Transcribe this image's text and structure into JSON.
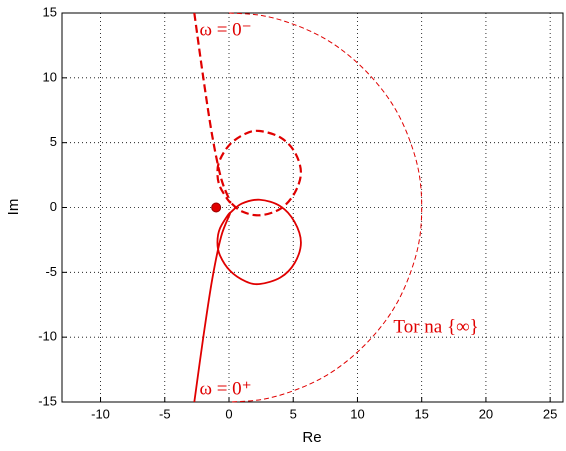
{
  "chart_data": {
    "type": "line",
    "xlabel": "Re",
    "ylabel": "Im",
    "xlim": [
      -13,
      26
    ],
    "ylim": [
      -15,
      15
    ],
    "xticks": [
      -10,
      -5,
      0,
      5,
      10,
      15,
      20,
      25
    ],
    "yticks": [
      -15,
      -10,
      -5,
      0,
      5,
      10,
      15
    ],
    "grid": true,
    "series": [
      {
        "color": "#e00000",
        "style": "solid",
        "x": [
          -2.7,
          -2.0,
          -1.3,
          -0.6,
          0.1,
          -0.7,
          -0.9,
          -0.7,
          0.1,
          1.3,
          2.4,
          4.0,
          5.1,
          5.6,
          5.1,
          4.0,
          2.4,
          1.0,
          0.1
        ],
        "values": [
          -15,
          -10,
          -5.5,
          -2.2,
          -0.4,
          -1.6,
          -2.7,
          -3.7,
          -4.9,
          -5.7,
          -5.9,
          -5.4,
          -4.3,
          -2.7,
          -1.1,
          0.1,
          0.6,
          0.3,
          -0.4
        ]
      },
      {
        "color": "#e00000",
        "style": "dashed",
        "x": [
          -2.7,
          -2.0,
          -1.3,
          -0.6,
          0.1,
          -0.7,
          -0.9,
          -0.7,
          0.1,
          1.3,
          2.4,
          4.0,
          5.1,
          5.6,
          5.1,
          4.0,
          2.4,
          1.0,
          0.1
        ],
        "values": [
          15,
          10,
          5.5,
          2.2,
          0.4,
          1.6,
          2.7,
          3.7,
          4.9,
          5.7,
          5.9,
          5.4,
          4.3,
          2.7,
          1.1,
          -0.1,
          -0.6,
          -0.3,
          0.4
        ]
      },
      {
        "color": "#e00000",
        "style": "thin-dashed",
        "x": [
          0,
          2.6,
          5.1,
          7.5,
          9.6,
          11.5,
          13.0,
          14.1,
          14.8,
          15,
          14.8,
          14.1,
          13.0,
          11.5,
          9.6,
          7.5,
          5.1,
          2.6,
          0
        ],
        "values": [
          15,
          14.8,
          14.1,
          13.0,
          11.5,
          9.6,
          7.5,
          5.1,
          2.6,
          0,
          -2.6,
          -5.1,
          -7.5,
          -9.6,
          -11.5,
          -13.0,
          -14.1,
          -14.8,
          -15
        ]
      }
    ],
    "point": {
      "color": "#e00000",
      "x": [
        -1
      ],
      "values": [
        0
      ]
    },
    "annotations": [
      {
        "text": "ω = 0⁻",
        "x": -2.3,
        "y": 13.6
      },
      {
        "text": "ω = 0⁺",
        "x": -2.3,
        "y": -14.1
      },
      {
        "text": "Tor na {∞}",
        "x": 12.8,
        "y": -9.3
      }
    ]
  }
}
